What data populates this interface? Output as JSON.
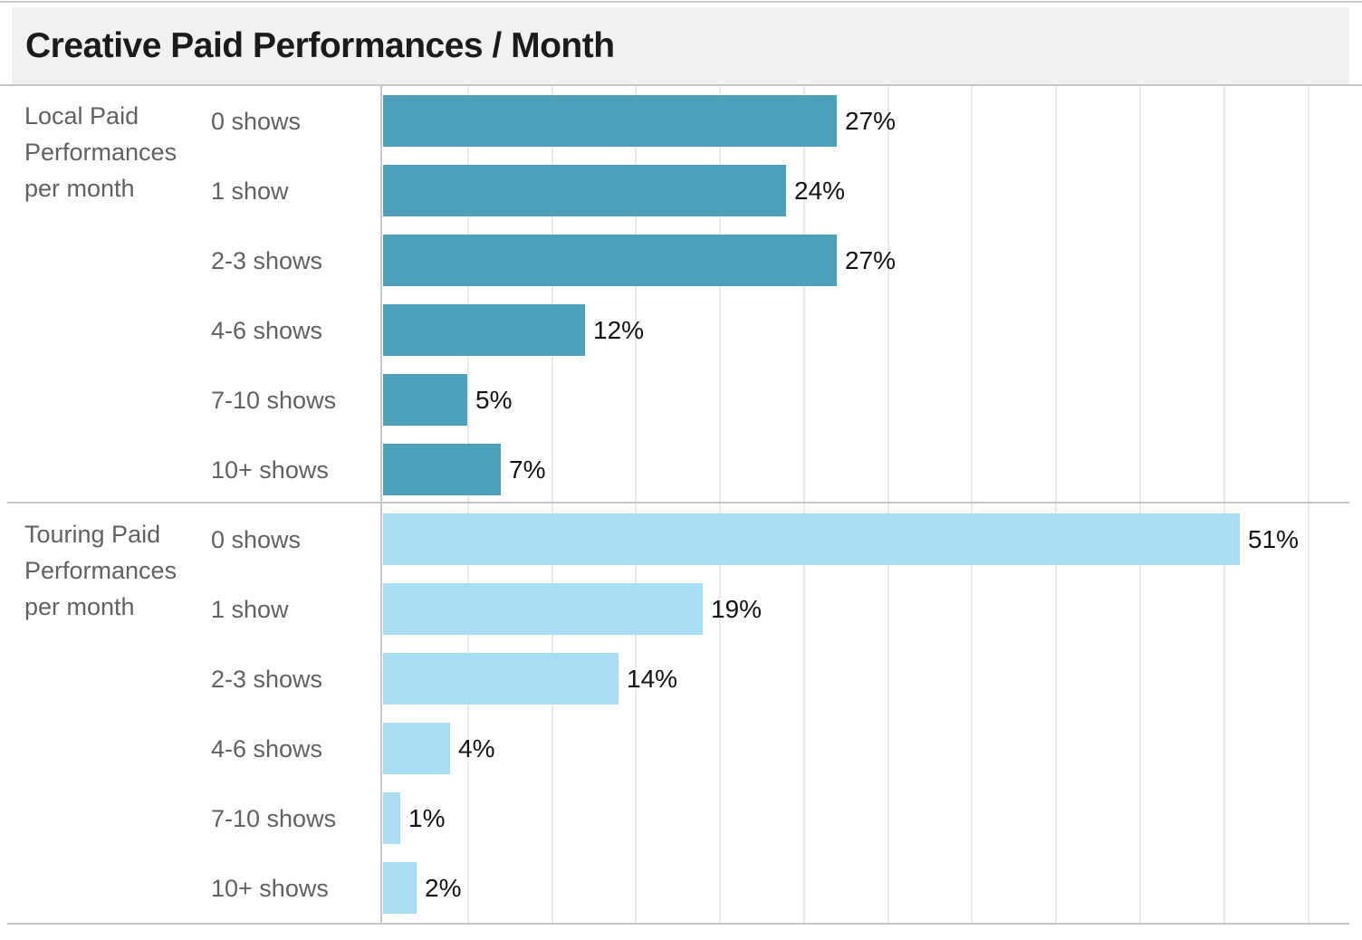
{
  "header": {
    "title": "Creative Paid Performances / Month"
  },
  "colors": {
    "local_bar": "#4da0ba",
    "touring_bar": "#a8dcf2",
    "title_bar_bg": "#f1f1f2",
    "grid_line": "#eaeaea",
    "axis_line": "#c6c6c6",
    "label_gray": "#5f6165",
    "value_text": "#121212",
    "title_text": "#1b1b1b"
  },
  "chart_data": {
    "type": "bar",
    "orientation": "horizontal",
    "title": "Creative Paid Performances / Month",
    "categories": [
      "0 shows",
      "1 show",
      "2-3 shows",
      "4-6 shows",
      "7-10 shows",
      "10+ shows"
    ],
    "series": [
      {
        "name": "Local Paid Performances per month",
        "color": "#4da0ba",
        "values": [
          27,
          24,
          27,
          12,
          5,
          7
        ],
        "labels": [
          "27%",
          "24%",
          "27%",
          "12%",
          "5%",
          "7%"
        ]
      },
      {
        "name": "Touring Paid Performances per month",
        "color": "#a8dcf2",
        "values": [
          51,
          19,
          14,
          4,
          1,
          2
        ],
        "labels": [
          "51%",
          "19%",
          "14%",
          "4%",
          "1%",
          "2%"
        ]
      }
    ],
    "value_unit": "%",
    "xlim": [
      0,
      57.5
    ],
    "gridline_step": 5,
    "grid": true,
    "legend": "none",
    "axis_tick_labels_visible": false
  }
}
